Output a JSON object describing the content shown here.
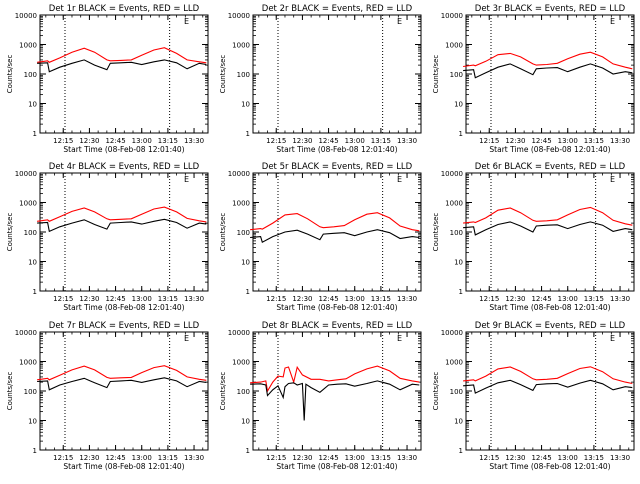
{
  "chart_data": [
    {
      "type": "line",
      "title": "Det 1r BLACK = Events, RED = LLD",
      "xlabel": "Start Time (08-Feb-08 12:01:40)",
      "ylabel": "Counts/sec",
      "xticks": [
        "12:15",
        "12:30",
        "12:45",
        "13:00",
        "13:15",
        "13:30"
      ],
      "yticks": [
        "1",
        "10",
        "100",
        "1000",
        "10000"
      ],
      "yscale": "log",
      "ylim": [
        1,
        10000
      ],
      "legend_mark": "E",
      "gap_lines": [
        "12:16",
        "13:16"
      ],
      "series": [
        {
          "color": "#ff0000",
          "x": [
            "12:00",
            "12:06",
            "12:07",
            "12:13",
            "12:20",
            "12:27",
            "12:33",
            "12:40",
            "12:42",
            "12:48",
            "12:54",
            "13:00",
            "13:07",
            "13:13",
            "13:20",
            "13:26",
            "13:33",
            "13:37"
          ],
          "values": [
            250,
            280,
            250,
            350,
            550,
            750,
            550,
            300,
            280,
            290,
            300,
            430,
            650,
            780,
            500,
            300,
            260,
            240
          ]
        },
        {
          "color": "#000000",
          "x": [
            "12:00",
            "12:06",
            "12:07",
            "12:13",
            "12:20",
            "12:27",
            "12:33",
            "12:40",
            "12:42",
            "12:48",
            "12:54",
            "13:00",
            "13:07",
            "13:13",
            "13:20",
            "13:26",
            "13:33",
            "13:37"
          ],
          "values": [
            230,
            240,
            120,
            170,
            230,
            300,
            200,
            140,
            230,
            240,
            250,
            210,
            260,
            300,
            240,
            150,
            230,
            210
          ]
        }
      ]
    },
    {
      "type": "line",
      "title": "Det 2r BLACK = Events, RED = LLD",
      "xlabel": "Start Time (08-Feb-08 12:01:40)",
      "ylabel": "Counts/sec",
      "xticks": [
        "12:15",
        "12:30",
        "12:45",
        "13:00",
        "13:15",
        "13:30"
      ],
      "yticks": [
        "1",
        "10",
        "100",
        "1000",
        "10000"
      ],
      "yscale": "log",
      "ylim": [
        1,
        10000
      ],
      "legend_mark": "E",
      "gap_lines": [
        "12:16",
        "13:16"
      ],
      "series": []
    },
    {
      "type": "line",
      "title": "Det 3r BLACK = Events, RED = LLD",
      "xlabel": "Start Time (08-Feb-08 12:01:40)",
      "ylabel": "Counts/sec",
      "xticks": [
        "12:15",
        "12:30",
        "12:45",
        "13:00",
        "13:15",
        "13:30"
      ],
      "yticks": [
        "1",
        "10",
        "100",
        "1000",
        "10000"
      ],
      "yscale": "log",
      "ylim": [
        1,
        10000
      ],
      "legend_mark": "E",
      "gap_lines": [
        "12:16",
        "13:16"
      ],
      "series": [
        {
          "color": "#ff0000",
          "x": [
            "12:00",
            "12:06",
            "12:07",
            "12:13",
            "12:20",
            "12:27",
            "12:33",
            "12:40",
            "12:42",
            "12:48",
            "12:54",
            "13:00",
            "13:07",
            "13:13",
            "13:20",
            "13:26",
            "13:33",
            "13:37"
          ],
          "values": [
            180,
            200,
            190,
            270,
            450,
            500,
            380,
            220,
            200,
            210,
            230,
            330,
            470,
            550,
            380,
            220,
            170,
            150
          ]
        },
        {
          "color": "#000000",
          "x": [
            "12:00",
            "12:06",
            "12:07",
            "12:13",
            "12:20",
            "12:27",
            "12:33",
            "12:40",
            "12:42",
            "12:48",
            "12:54",
            "13:00",
            "13:07",
            "13:13",
            "13:20",
            "13:26",
            "13:33",
            "13:37"
          ],
          "values": [
            130,
            140,
            75,
            110,
            170,
            220,
            150,
            95,
            150,
            160,
            165,
            120,
            170,
            220,
            160,
            100,
            120,
            110
          ]
        }
      ]
    },
    {
      "type": "line",
      "title": "Det 4r BLACK = Events, RED = LLD",
      "xlabel": "Start Time (08-Feb-08 12:01:40)",
      "ylabel": "Counts/sec",
      "xticks": [
        "12:15",
        "12:30",
        "12:45",
        "13:00",
        "13:15",
        "13:30"
      ],
      "yticks": [
        "1",
        "10",
        "100",
        "1000",
        "10000"
      ],
      "yscale": "log",
      "ylim": [
        1,
        10000
      ],
      "legend_mark": "E",
      "gap_lines": [
        "12:16",
        "13:16"
      ],
      "series": [
        {
          "color": "#ff0000",
          "x": [
            "12:00",
            "12:06",
            "12:07",
            "12:13",
            "12:20",
            "12:27",
            "12:33",
            "12:40",
            "12:42",
            "12:48",
            "12:54",
            "13:00",
            "13:07",
            "13:13",
            "13:20",
            "13:26",
            "13:33",
            "13:37"
          ],
          "values": [
            230,
            260,
            230,
            330,
            500,
            650,
            480,
            280,
            260,
            270,
            280,
            400,
            600,
            700,
            480,
            290,
            240,
            220
          ]
        },
        {
          "color": "#000000",
          "x": [
            "12:00",
            "12:06",
            "12:07",
            "12:13",
            "12:20",
            "12:27",
            "12:33",
            "12:40",
            "12:42",
            "12:48",
            "12:54",
            "13:00",
            "13:07",
            "13:13",
            "13:20",
            "13:26",
            "13:33",
            "13:37"
          ],
          "values": [
            200,
            210,
            105,
            150,
            200,
            260,
            180,
            125,
            200,
            210,
            220,
            185,
            230,
            270,
            210,
            135,
            200,
            185
          ]
        }
      ]
    },
    {
      "type": "line",
      "title": "Det 5r BLACK = Events, RED = LLD",
      "xlabel": "Start Time (08-Feb-08 12:01:40)",
      "ylabel": "Counts/sec",
      "xticks": [
        "12:15",
        "12:30",
        "12:45",
        "13:00",
        "13:15",
        "13:30"
      ],
      "yticks": [
        "1",
        "10",
        "100",
        "1000",
        "10000"
      ],
      "yscale": "log",
      "ylim": [
        1,
        10000
      ],
      "legend_mark": "E",
      "gap_lines": [
        "12:16",
        "13:16"
      ],
      "series": [
        {
          "color": "#ff0000",
          "x": [
            "12:00",
            "12:06",
            "12:07",
            "12:13",
            "12:20",
            "12:27",
            "12:33",
            "12:40",
            "12:42",
            "12:48",
            "12:54",
            "13:00",
            "13:07",
            "13:13",
            "13:20",
            "13:26",
            "13:33",
            "13:37"
          ],
          "values": [
            120,
            130,
            125,
            200,
            380,
            420,
            280,
            150,
            140,
            150,
            165,
            260,
            400,
            450,
            300,
            160,
            120,
            110
          ]
        },
        {
          "color": "#000000",
          "x": [
            "12:00",
            "12:06",
            "12:07",
            "12:13",
            "12:20",
            "12:27",
            "12:33",
            "12:40",
            "12:42",
            "12:48",
            "12:54",
            "13:00",
            "13:07",
            "13:13",
            "13:20",
            "13:26",
            "13:33",
            "13:37"
          ],
          "values": [
            65,
            70,
            45,
            70,
            100,
            115,
            85,
            55,
            85,
            90,
            95,
            75,
            100,
            120,
            95,
            60,
            70,
            65
          ]
        }
      ]
    },
    {
      "type": "line",
      "title": "Det 6r BLACK = Events, RED = LLD",
      "xlabel": "Start Time (08-Feb-08 12:01:40)",
      "ylabel": "Counts/sec",
      "xticks": [
        "12:15",
        "12:30",
        "12:45",
        "13:00",
        "13:15",
        "13:30"
      ],
      "yticks": [
        "1",
        "10",
        "100",
        "1000",
        "10000"
      ],
      "yscale": "log",
      "ylim": [
        1,
        10000
      ],
      "legend_mark": "E",
      "gap_lines": [
        "12:16",
        "13:16"
      ],
      "series": [
        {
          "color": "#ff0000",
          "x": [
            "12:00",
            "12:06",
            "12:07",
            "12:13",
            "12:20",
            "12:27",
            "12:33",
            "12:40",
            "12:42",
            "12:48",
            "12:54",
            "13:00",
            "13:07",
            "13:13",
            "13:20",
            "13:26",
            "13:33",
            "13:37"
          ],
          "values": [
            200,
            220,
            210,
            300,
            550,
            650,
            450,
            250,
            230,
            240,
            260,
            380,
            580,
            680,
            450,
            250,
            190,
            170
          ]
        },
        {
          "color": "#000000",
          "x": [
            "12:00",
            "12:06",
            "12:07",
            "12:13",
            "12:20",
            "12:27",
            "12:33",
            "12:40",
            "12:42",
            "12:48",
            "12:54",
            "13:00",
            "13:07",
            "13:13",
            "13:20",
            "13:26",
            "13:33",
            "13:37"
          ],
          "values": [
            140,
            150,
            80,
            120,
            180,
            220,
            160,
            100,
            160,
            170,
            175,
            130,
            180,
            220,
            170,
            105,
            130,
            120
          ]
        }
      ]
    },
    {
      "type": "line",
      "title": "Det 7r BLACK = Events, RED = LLD",
      "xlabel": "Start Time (08-Feb-08 12:01:40)",
      "ylabel": "Counts/sec",
      "xticks": [
        "12:15",
        "12:30",
        "12:45",
        "13:00",
        "13:15",
        "13:30"
      ],
      "yticks": [
        "1",
        "10",
        "100",
        "1000",
        "10000"
      ],
      "yscale": "log",
      "ylim": [
        1,
        10000
      ],
      "legend_mark": "E",
      "gap_lines": [
        "12:16",
        "13:16"
      ],
      "series": [
        {
          "color": "#ff0000",
          "x": [
            "12:00",
            "12:06",
            "12:07",
            "12:13",
            "12:20",
            "12:27",
            "12:33",
            "12:40",
            "12:42",
            "12:48",
            "12:54",
            "13:00",
            "13:07",
            "13:13",
            "13:20",
            "13:26",
            "13:33",
            "13:37"
          ],
          "values": [
            240,
            270,
            240,
            340,
            520,
            700,
            520,
            290,
            270,
            280,
            290,
            420,
            620,
            720,
            500,
            300,
            250,
            230
          ]
        },
        {
          "color": "#000000",
          "x": [
            "12:00",
            "12:06",
            "12:07",
            "12:13",
            "12:20",
            "12:27",
            "12:33",
            "12:40",
            "12:42",
            "12:48",
            "12:54",
            "13:00",
            "13:07",
            "13:13",
            "13:20",
            "13:26",
            "13:33",
            "13:37"
          ],
          "values": [
            210,
            220,
            110,
            160,
            210,
            270,
            190,
            130,
            210,
            220,
            230,
            195,
            240,
            280,
            220,
            140,
            210,
            195
          ]
        }
      ]
    },
    {
      "type": "line",
      "title": "Det 8r BLACK = Events, RED = LLD",
      "xlabel": "Start Time (08-Feb-08 12:01:40)",
      "ylabel": "Counts/sec",
      "xticks": [
        "12:15",
        "12:30",
        "12:45",
        "13:00",
        "13:15",
        "13:30"
      ],
      "yticks": [
        "1",
        "10",
        "100",
        "1000",
        "10000"
      ],
      "yscale": "log",
      "ylim": [
        1,
        10000
      ],
      "legend_mark": "E",
      "gap_lines": [
        "12:16",
        "13:16"
      ],
      "series": [
        {
          "color": "#ff0000",
          "x": [
            "12:00",
            "12:06",
            "12:09",
            "12:10",
            "12:13",
            "12:16",
            "12:19",
            "12:20",
            "12:22",
            "12:25",
            "12:27",
            "12:30",
            "12:35",
            "12:40",
            "12:45",
            "12:50",
            "12:55",
            "13:00",
            "13:07",
            "13:13",
            "13:20",
            "13:26",
            "13:33",
            "13:37"
          ],
          "values": [
            190,
            200,
            220,
            100,
            200,
            320,
            300,
            600,
            650,
            200,
            640,
            350,
            250,
            250,
            220,
            240,
            260,
            380,
            560,
            700,
            480,
            270,
            220,
            200
          ]
        },
        {
          "color": "#000000",
          "x": [
            "12:00",
            "12:06",
            "12:09",
            "12:10",
            "12:13",
            "12:16",
            "12:19",
            "12:20",
            "12:22",
            "12:25",
            "12:27",
            "12:30",
            "12:31",
            "12:32",
            "12:35",
            "12:40",
            "12:45",
            "12:50",
            "12:55",
            "13:00",
            "13:07",
            "13:13",
            "13:20",
            "13:26",
            "13:33",
            "13:37"
          ],
          "values": [
            170,
            175,
            160,
            70,
            110,
            150,
            60,
            140,
            180,
            190,
            160,
            180,
            10,
            170,
            130,
            90,
            160,
            170,
            175,
            145,
            180,
            220,
            170,
            110,
            170,
            160
          ]
        }
      ]
    },
    {
      "type": "line",
      "title": "Det 9r BLACK = Events, RED = LLD",
      "xlabel": "Start Time (08-Feb-08 12:01:40)",
      "ylabel": "Counts/sec",
      "xticks": [
        "12:15",
        "12:30",
        "12:45",
        "13:00",
        "13:15",
        "13:30"
      ],
      "yticks": [
        "1",
        "10",
        "100",
        "1000",
        "10000"
      ],
      "yscale": "log",
      "ylim": [
        1,
        10000
      ],
      "legend_mark": "E",
      "gap_lines": [
        "12:16",
        "13:16"
      ],
      "series": [
        {
          "color": "#ff0000",
          "x": [
            "12:00",
            "12:06",
            "12:07",
            "12:13",
            "12:20",
            "12:27",
            "12:33",
            "12:40",
            "12:42",
            "12:48",
            "12:54",
            "13:00",
            "13:07",
            "13:13",
            "13:20",
            "13:26",
            "13:33",
            "13:37"
          ],
          "values": [
            220,
            240,
            220,
            320,
            560,
            650,
            460,
            260,
            240,
            250,
            270,
            390,
            580,
            660,
            450,
            260,
            200,
            180
          ]
        },
        {
          "color": "#000000",
          "x": [
            "12:00",
            "12:06",
            "12:07",
            "12:13",
            "12:20",
            "12:27",
            "12:33",
            "12:40",
            "12:42",
            "12:48",
            "12:54",
            "13:00",
            "13:07",
            "13:13",
            "13:20",
            "13:26",
            "13:33",
            "13:37"
          ],
          "values": [
            150,
            160,
            85,
            125,
            190,
            230,
            165,
            105,
            165,
            175,
            180,
            135,
            185,
            230,
            175,
            110,
            140,
            130
          ]
        }
      ]
    }
  ]
}
